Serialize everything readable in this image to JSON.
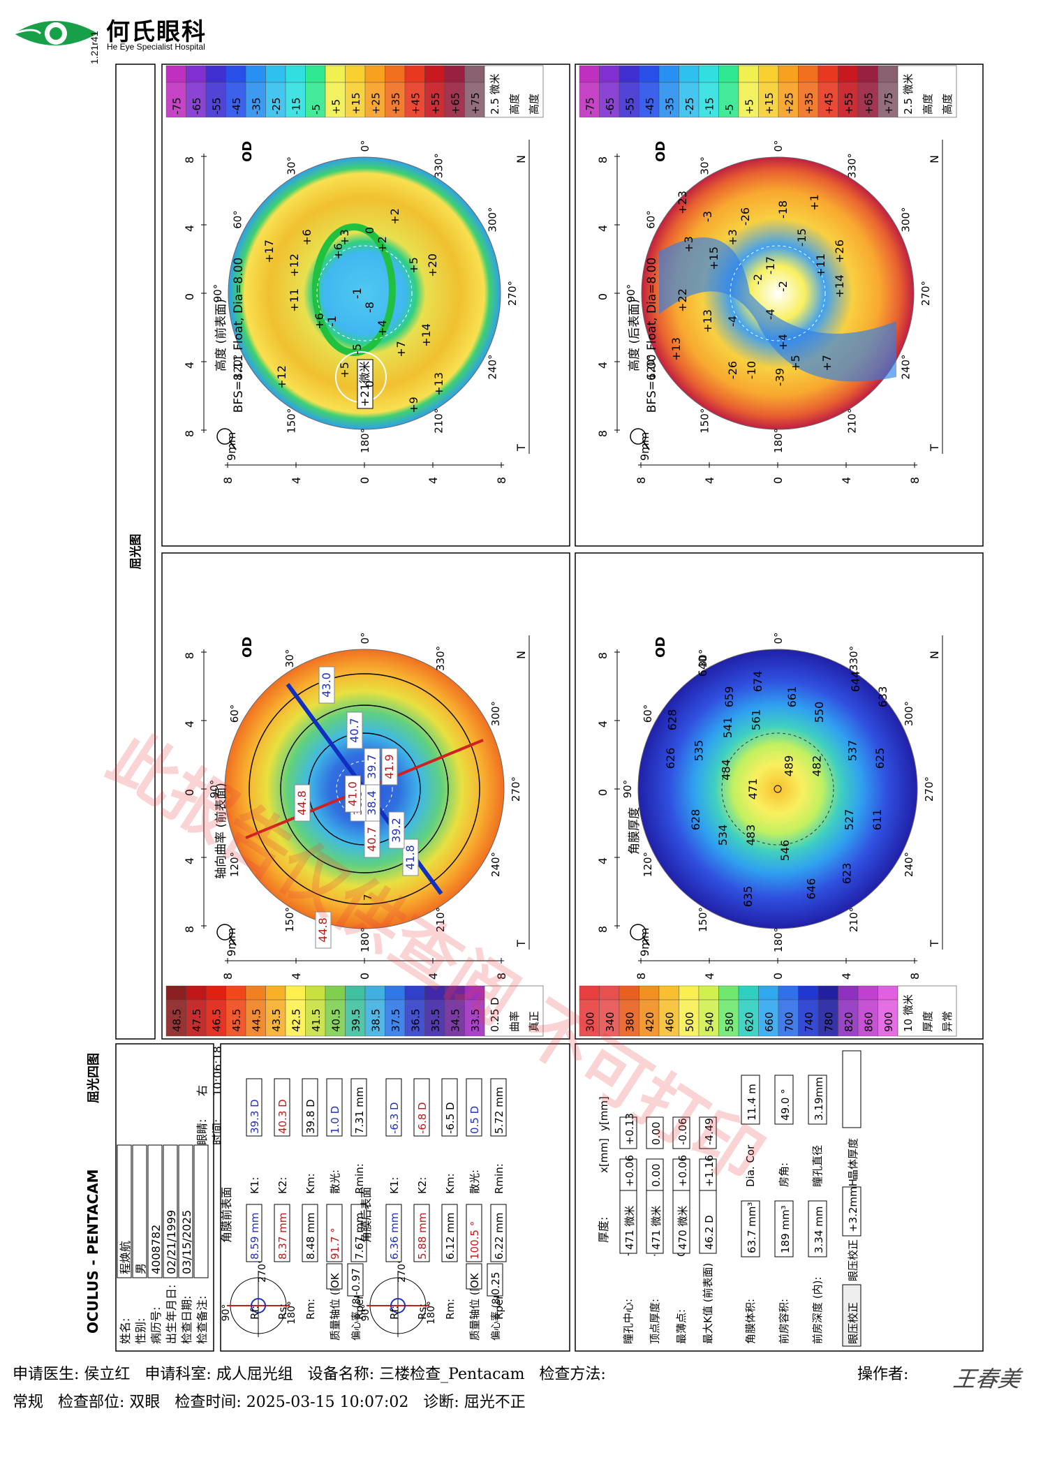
{
  "header": {
    "hospital_name": "何氏眼科",
    "hospital_name_en": "He Eye Specialist Hospital",
    "software_version": "1.21r41"
  },
  "report": {
    "brand": "OCULUS - PENTACAM",
    "report_type": "屈光四图",
    "refraction_title": "屈光图"
  },
  "patient": {
    "name_label": "姓名:",
    "name": "程焕航",
    "sex_label": "性别:",
    "sex": "男",
    "record_label": "病历号:",
    "record": "4008782",
    "dob_label": "出生年月日:",
    "dob": "02/21/1999",
    "eye_label": "眼睛:",
    "eye": "右",
    "exam_date_label": "检查日期:",
    "exam_date": "03/15/2025",
    "time_label": "时间:",
    "time": "10:06:18",
    "remarks_label": "检查备注:",
    "remarks": ""
  },
  "anterior": {
    "title": "角膜前表面",
    "rf_label": "Rf:",
    "rf": "8.59 mm",
    "k1_label": "K1:",
    "k1": "39.3 D",
    "rs_label": "Rs:",
    "rs": "8.37 mm",
    "k2_label": "K2:",
    "k2": "40.3 D",
    "rm_label": "Rm:",
    "rm": "8.48 mm",
    "km_label": "Km:",
    "km": "39.8 D",
    "axis_label": "轴位 (陡峭):",
    "axis": "91.7 °",
    "astig_label": "散光:",
    "astig": "1.0 D",
    "rper_label": "Rper",
    "rper": "7.67 mm",
    "rmin_label": "Rmin:",
    "rmin": "7.31 mm",
    "quality_label": "质量",
    "quality": "OK",
    "ecc_label": "偏心率 (8mm)",
    "ecc": "-0.97",
    "compass_top": "90°",
    "compass_right": "270°",
    "compass_bottom": "180°"
  },
  "posterior": {
    "title": "角膜后表面",
    "rf_label": "Rf:",
    "rf": "6.36 mm",
    "k1_label": "K1:",
    "k1": "-6.3 D",
    "rs_label": "Rs:",
    "rs": "5.88 mm",
    "k2_label": "K2:",
    "k2": "-6.8 D",
    "rm_label": "Rm:",
    "rm": "6.12 mm",
    "km_label": "Km:",
    "km": "-6.5 D",
    "axis_label": "轴位 (陡峭):",
    "axis": "100.5 °",
    "astig_label": "散光:",
    "astig": "0.5 D",
    "rper_label": "Rper",
    "rper": "6.22 mm",
    "rmin_label": "Rmin:",
    "rmin": "5.72 mm",
    "quality_label": "质量",
    "quality": "OK",
    "ecc_label": "偏心率 (8mm)",
    "ecc": "0.25",
    "compass_top": "90°",
    "compass_right": "270°",
    "compass_bottom": "180°"
  },
  "thickness": {
    "title": "厚度:",
    "x_header": "x[mm]",
    "y_header": "y[mm]",
    "pupil_label": "瞳孔中心:",
    "pupil": "471 微米",
    "pupil_x": "+0.06",
    "pupil_y": "+0.13",
    "pupil_marker": "+",
    "apex_label": "顶点厚度:",
    "apex": "471 微米",
    "apex_x": "0.00",
    "apex_y": "0.00",
    "apex_marker": "·",
    "thin_label": "最薄点:",
    "thin": "470 微米",
    "thin_x": "+0.06",
    "thin_y": "-0.06",
    "thin_marker": "O",
    "kmax_label": "最大K值 (前表面)",
    "kmax": "46.2 D",
    "kmax_x": "+1.16",
    "kmax_y": "-4.49"
  },
  "chamber": {
    "volume_label": "角膜体积:",
    "volume": "63.7 mm³",
    "dia_label": "Dia. Cor",
    "dia": "11.4 m",
    "acv_label": "前房容积:",
    "acv": "189 mm³",
    "angle_label": "房角:",
    "angle": "49.0 °",
    "acd_label": "前房深度 (内):",
    "acd": "3.34 mm",
    "pupil_dia_label": "瞳孔直径",
    "pupil_dia": "3.19mm",
    "iop_label": "眼压校正",
    "iop_corr_label": "眼压校正",
    "iop_corr": "+3.2mmH",
    "lens_label": "晶体厚度",
    "lens": ""
  },
  "maps": {
    "axial": {
      "title": "轴向曲率 (前表面)",
      "eye": "OD",
      "zoom": "9mm",
      "nasal": "N",
      "temporal": "T",
      "deg_0": "0°",
      "deg_30": "30°",
      "deg_60": "60°",
      "deg_90": "90°",
      "deg_120": "120°",
      "deg_150": "150°",
      "deg_180": "180°",
      "deg_210": "210°",
      "deg_240": "240°",
      "deg_270": "270°",
      "deg_300": "300°",
      "deg_330": "330°",
      "ring_label": "7",
      "values": [
        {
          "t": "41.8",
          "c": "blue"
        },
        {
          "t": "39.2",
          "c": "blue"
        },
        {
          "t": "38.4",
          "c": "blue"
        },
        {
          "t": "39.7",
          "c": "blue"
        },
        {
          "t": "40.7",
          "c": "blue"
        },
        {
          "t": "43.0",
          "c": "blue"
        },
        {
          "t": "38.8",
          "c": "red"
        },
        {
          "t": "41.0",
          "c": "red"
        },
        {
          "t": "41.9",
          "c": "red"
        },
        {
          "t": "44.8",
          "c": "red"
        },
        {
          "t": "40.7",
          "c": "red"
        },
        {
          "t": "44.8",
          "c": "red"
        }
      ]
    },
    "elev_front": {
      "title": "高度 (前表面)",
      "subtitle": "BFS=8.11 Float, Dia=8.00",
      "eye": "OD",
      "zoom": "9mm",
      "nasal": "N",
      "temporal": "T",
      "deg_0": "0°",
      "deg_30": "30°",
      "deg_60": "60°",
      "deg_90": "90°",
      "deg_120": "120°",
      "deg_150": "150°",
      "deg_180": "180°",
      "deg_210": "210°",
      "deg_240": "240°",
      "deg_270": "270°",
      "deg_300": "300°",
      "deg_330": "330°",
      "marker": "+21微米",
      "values": [
        "+20",
        "+13",
        "+14",
        "+5",
        "+7",
        "+9",
        "+2",
        "+2",
        "0",
        "+4",
        "0",
        "-8",
        "-5",
        "-1",
        "+3",
        "+5",
        "+6",
        "-1",
        "+6",
        "+6",
        "+12",
        "+11",
        "+12",
        "+17"
      ]
    },
    "thick": {
      "title": "角膜厚度",
      "eye": "OD",
      "zoom": "9mm",
      "nasal": "N",
      "temporal": "T",
      "deg_0": "0°",
      "deg_30": "30°",
      "deg_60": "60°",
      "deg_90": "90°",
      "deg_120": "120°",
      "deg_150": "150°",
      "deg_180": "180°",
      "deg_210": "210°",
      "deg_240": "240°",
      "deg_270": "270°",
      "deg_300": "300°",
      "deg_330": "330°",
      "values": [
        "628",
        "626",
        "640",
        "535",
        "628",
        "659",
        "541",
        "484",
        "534",
        "674",
        "561",
        "471",
        "483",
        "635",
        "661",
        "489",
        "546",
        "550",
        "482",
        "646",
        "644",
        "537",
        "527",
        "623",
        "633",
        "625",
        "611"
      ]
    },
    "elev_back": {
      "title": "高度 (后表面)",
      "subtitle": "BFS=6.00 Float, Dia=8.00",
      "eye": "OD",
      "zoom": "9mm",
      "nasal": "N",
      "temporal": "T",
      "deg_0": "0°",
      "deg_30": "30°",
      "deg_60": "60°",
      "deg_90": "90°",
      "deg_120": "120°",
      "deg_150": "150°",
      "deg_180": "180°",
      "deg_210": "210°",
      "deg_240": "240°",
      "deg_270": "270°",
      "deg_300": "300°",
      "deg_330": "330°",
      "values": [
        "+26",
        "+14",
        "+7",
        "+11",
        "+1",
        "-15",
        "+5",
        "-2",
        "+4",
        "-18",
        "-39",
        "-17",
        "-4",
        "-2",
        "-10",
        "-26",
        "-26",
        "-4",
        "+3",
        "+15",
        "+13",
        "-3",
        "+3",
        "+22",
        "+13",
        "+23"
      ]
    },
    "tick_minus8": "8",
    "tick_minus4": "4",
    "tick_0": "0",
    "tick_4": "4",
    "tick_8": "8"
  },
  "scales": {
    "axial": {
      "labels": [
        "48.5",
        "47.5",
        "46.5",
        "45.5",
        "44.5",
        "43.5",
        "42.5",
        "41.5",
        "40.5",
        "39.5",
        "38.5",
        "37.5",
        "36.5",
        "35.5",
        "34.5",
        "33.5"
      ],
      "colors": [
        "#8a2020",
        "#c01818",
        "#e02010",
        "#f04818",
        "#f08020",
        "#f8b028",
        "#fff050",
        "#c8e040",
        "#80d050",
        "#40c0a0",
        "#40b0e0",
        "#3078e8",
        "#3040c8",
        "#4028a8",
        "#702898",
        "#a030c0"
      ],
      "unit": "0.25 D",
      "kind": "曲率",
      "mode": "真正"
    },
    "elevation": {
      "labels": [
        "-75",
        "-65",
        "-55",
        "-45",
        "-35",
        "-25",
        "-15",
        "-5",
        "+5",
        "+15",
        "+25",
        "+35",
        "+45",
        "+55",
        "+65",
        "+75"
      ],
      "colors": [
        "#c030c0",
        "#8030d0",
        "#4030d0",
        "#2850e8",
        "#2890f0",
        "#30c0f0",
        "#30e0e0",
        "#30e890",
        "#f0f050",
        "#f8d030",
        "#f8a020",
        "#f07020",
        "#e83820",
        "#c81820",
        "#982040",
        "#886070"
      ],
      "unit": "2.5 微米",
      "kind": "高度",
      "mode": "高度"
    },
    "thickness": {
      "labels": [
        "300",
        "340",
        "380",
        "420",
        "460",
        "500",
        "540",
        "580",
        "620",
        "660",
        "700",
        "740",
        "780",
        "820",
        "860",
        "900"
      ],
      "colors": [
        "#e84040",
        "#e85050",
        "#e86020",
        "#f09020",
        "#f8c030",
        "#f8f050",
        "#d0f050",
        "#70e870",
        "#30d0c0",
        "#30a8f0",
        "#3070e8",
        "#2038d0",
        "#2020a0",
        "#9030c0",
        "#c040d0",
        "#e060e0"
      ],
      "unit": "10 微米",
      "kind": "厚度",
      "mode": "异常"
    }
  },
  "footer": {
    "line1": "申请医生: 侯立红   申请科室: 成人屈光组   设备名称: 三楼检查_Pentacam   检查方法:",
    "line2": "常规   检查部位: 双眼   检查时间: 2025-03-15 10:07:02   诊断: 屈光不正",
    "operator_label": "操作者:",
    "operator_signature": "王春美"
  },
  "watermark": "此报告仅供查阅 不可打印"
}
